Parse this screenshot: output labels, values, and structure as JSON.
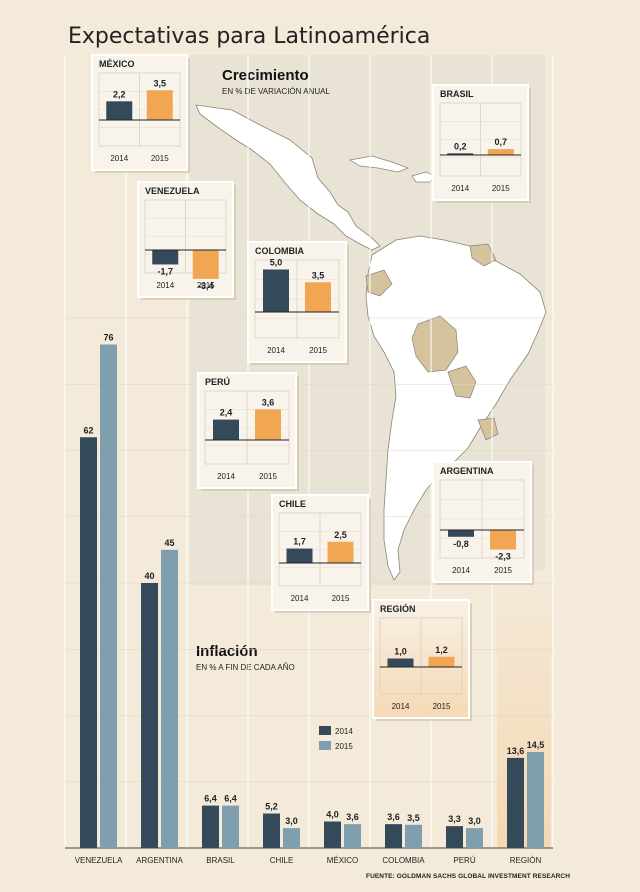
{
  "title": "Expectativas para Latinoamérica",
  "colors": {
    "c2014": "#34495a",
    "c2015_growth": "#f2a654",
    "c2015_inflation": "#7f9eae",
    "land": "#ffffff",
    "land_dark": "#d4c39c",
    "sea": "#e7e2d6",
    "card_bg": "#f8f4ec",
    "region_bg": "#f7dfc0",
    "background": "#f3ead9"
  },
  "growth": {
    "title": "Crecimiento",
    "subtitle": "EN % DE VARIACIÓN ANUAL"
  },
  "inflation": {
    "title": "Inflación",
    "subtitle": "EN % A FIN DE CADA AÑO"
  },
  "legend": {
    "y2014": "2014",
    "y2015": "2015"
  },
  "source": "FUENTE: GOLDMAN SACHS GLOBAL INVESTMENT RESEARCH",
  "chart_data": [
    {
      "type": "bar",
      "name": "Inflación",
      "categories": [
        "VENEZUELA",
        "ARGENTINA",
        "BRASIL",
        "CHILE",
        "MÉXICO",
        "COLOMBIA",
        "PERÚ",
        "REGIÓN"
      ],
      "series": [
        {
          "name": "2014",
          "values": [
            62,
            40,
            6.4,
            5.2,
            4.0,
            3.6,
            3.3,
            13.6
          ],
          "labels": [
            "62",
            "40",
            "6,4",
            "5,2",
            "4,0",
            "3,6",
            "3,3",
            "13,6"
          ]
        },
        {
          "name": "2015",
          "values": [
            76,
            45,
            6.4,
            3.0,
            3.6,
            3.5,
            3.0,
            14.5
          ],
          "labels": [
            "76",
            "45",
            "6,4",
            "3,0",
            "3,6",
            "3,5",
            "3,0",
            "14,5"
          ]
        }
      ]
    },
    {
      "type": "bar",
      "name": "Crecimiento",
      "cards": [
        {
          "country": "MÉXICO",
          "years": [
            "2014",
            "2015"
          ],
          "values": [
            2.2,
            3.5
          ],
          "labels": [
            "2,2",
            "3,5"
          ]
        },
        {
          "country": "BRASIL",
          "years": [
            "2014",
            "2015"
          ],
          "values": [
            0.2,
            0.7
          ],
          "labels": [
            "0,2",
            "0,7"
          ]
        },
        {
          "country": "VENEZUELA",
          "years": [
            "2014",
            "2015"
          ],
          "values": [
            -1.7,
            -3.4
          ],
          "labels": [
            "-1,7",
            "-3,4"
          ]
        },
        {
          "country": "COLOMBIA",
          "years": [
            "2014",
            "2015"
          ],
          "values": [
            5.0,
            3.5
          ],
          "labels": [
            "5,0",
            "3,5"
          ]
        },
        {
          "country": "PERÚ",
          "years": [
            "2014",
            "2015"
          ],
          "values": [
            2.4,
            3.6
          ],
          "labels": [
            "2,4",
            "3,6"
          ]
        },
        {
          "country": "ARGENTINA",
          "years": [
            "2014",
            "2015"
          ],
          "values": [
            -0.8,
            -2.3
          ],
          "labels": [
            "-0,8",
            "-2,3"
          ]
        },
        {
          "country": "CHILE",
          "years": [
            "2014",
            "2015"
          ],
          "values": [
            1.7,
            2.5
          ],
          "labels": [
            "1,7",
            "2,5"
          ]
        },
        {
          "country": "REGIÓN",
          "years": [
            "2014",
            "2015"
          ],
          "values": [
            1.0,
            1.2
          ],
          "labels": [
            "1,0",
            "1,2"
          ]
        }
      ]
    }
  ]
}
